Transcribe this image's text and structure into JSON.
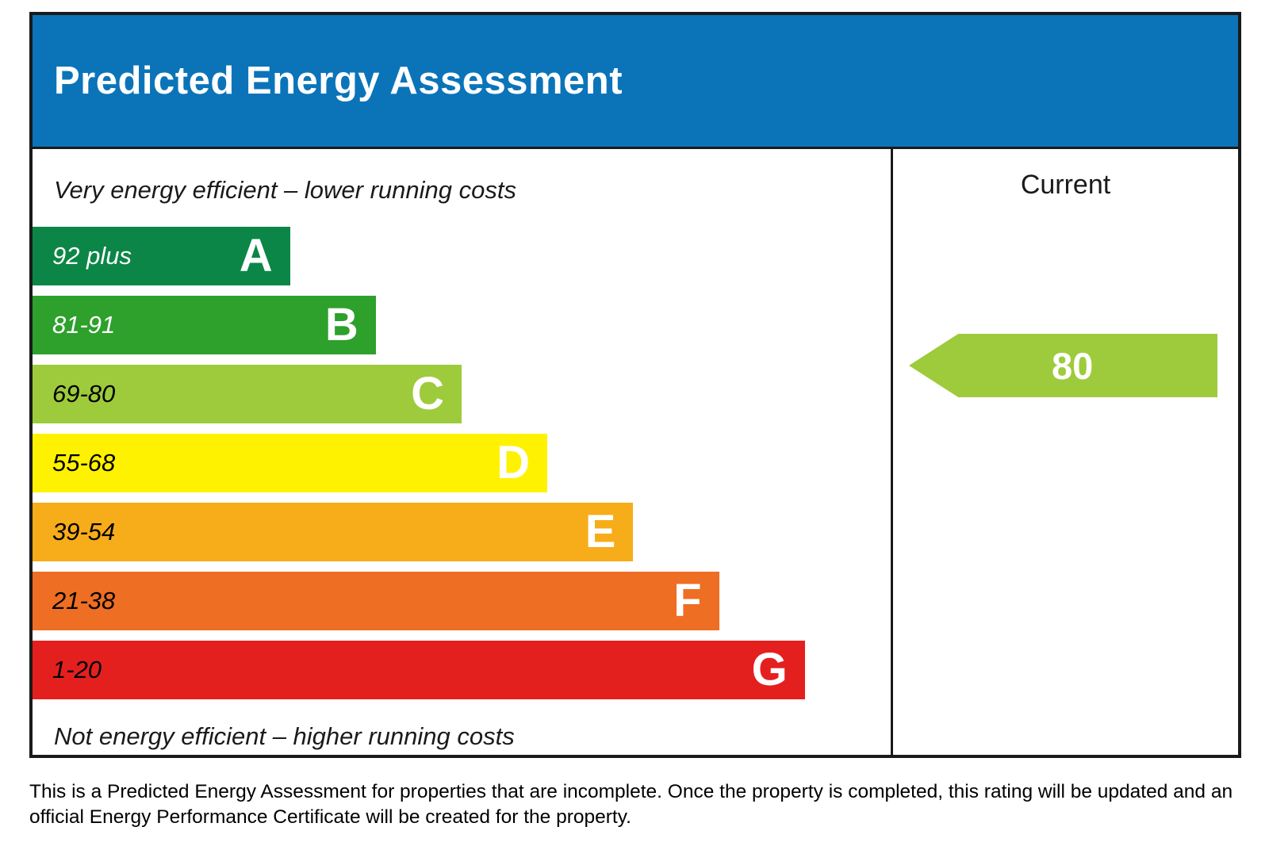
{
  "header": {
    "title": "Predicted Energy Assessment",
    "bg_color": "#0b74b9"
  },
  "chart_data": {
    "type": "bar",
    "title": "Predicted Energy Assessment",
    "top_label": "Very energy efficient – lower running costs",
    "bottom_label": "Not energy efficient – higher running costs",
    "column_header": "Current",
    "legend_position": "none",
    "grid": false,
    "bands": [
      {
        "letter": "A",
        "range": "92 plus",
        "color": "#0c8647",
        "text_color": "#ffffff",
        "width_pct": 30
      },
      {
        "letter": "B",
        "range": "81-91",
        "color": "#2ea02c",
        "text_color": "#ffffff",
        "width_pct": 40
      },
      {
        "letter": "C",
        "range": "69-80",
        "color": "#9ecb3b",
        "text_color": "#000000",
        "width_pct": 50
      },
      {
        "letter": "D",
        "range": "55-68",
        "color": "#fff200",
        "text_color": "#000000",
        "width_pct": 60
      },
      {
        "letter": "E",
        "range": "39-54",
        "color": "#f7ac19",
        "text_color": "#000000",
        "width_pct": 70
      },
      {
        "letter": "F",
        "range": "21-38",
        "color": "#ee6e23",
        "text_color": "#000000",
        "width_pct": 80
      },
      {
        "letter": "G",
        "range": "1-20",
        "color": "#e4201f",
        "text_color": "#000000",
        "width_pct": 90
      }
    ],
    "current": {
      "value": "80",
      "band": "C",
      "color": "#9ecb3b"
    }
  },
  "footer": {
    "text": "This is a Predicted Energy Assessment for properties that are incomplete. Once the property is completed, this rating will be updated and an official Energy Performance Certificate will be created for the property."
  }
}
